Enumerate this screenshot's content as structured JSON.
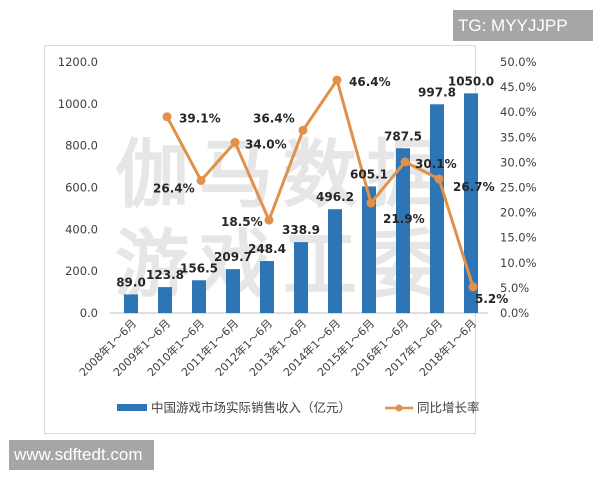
{
  "badges": {
    "top_right": "TG: MYYJJPP",
    "bottom_left": "www.sdftedt.com"
  },
  "watermark": {
    "line1": "伽马数据",
    "line2": "游戏工委"
  },
  "colors": {
    "bar": "#2e75b6",
    "line": "#e0914a",
    "axis_text": "#404040",
    "label_text": "#262626",
    "badge_bg": "#a6a6a6",
    "watermark": "#e6e6e6"
  },
  "chart_data": {
    "type": "bar+line",
    "title": "",
    "categories": [
      "2008年1～6月",
      "2009年1～6月",
      "2010年1～6月",
      "2011年1～6月",
      "2012年1～6月",
      "2013年1～6月",
      "2014年1～6月",
      "2015年1～6月",
      "2016年1～6月",
      "2017年1～6月",
      "2018年1～6月"
    ],
    "series": [
      {
        "name": "中国游戏市场实际销售收入（亿元）",
        "type": "bar",
        "axis": "left",
        "values": [
          89.0,
          123.8,
          156.5,
          209.7,
          248.4,
          338.9,
          496.2,
          605.1,
          787.5,
          997.8,
          1050.0
        ],
        "labels": [
          "89.0",
          "123.8",
          "156.5",
          "209.7",
          "248.4",
          "338.9",
          "496.2",
          "605.1",
          "787.5",
          "997.8",
          "1050.0"
        ]
      },
      {
        "name": "同比增长率",
        "type": "line",
        "axis": "right",
        "values": [
          null,
          39.1,
          26.4,
          34.0,
          18.5,
          36.4,
          46.4,
          21.9,
          30.1,
          26.7,
          5.2
        ],
        "labels": [
          "",
          "39.1%",
          "26.4%",
          "34.0%",
          "18.5%",
          "36.4%",
          "46.4%",
          "21.9%",
          "30.1%",
          "26.7%",
          "5.2%"
        ]
      }
    ],
    "left_axis": {
      "ylim": [
        0,
        1200
      ],
      "ticks": [
        "0.0",
        "200.0",
        "400.0",
        "600.0",
        "800.0",
        "1000.0",
        "1200.0"
      ]
    },
    "right_axis": {
      "ylim": [
        0,
        50
      ],
      "ticks": [
        "0.0%",
        "5.0%",
        "10.0%",
        "15.0%",
        "20.0%",
        "25.0%",
        "30.0%",
        "35.0%",
        "40.0%",
        "45.0%",
        "50.0%"
      ]
    },
    "xlabel": "",
    "ylabel": "",
    "grid": false,
    "legend": {
      "position": "bottom",
      "items": [
        "中国游戏市场实际销售收入（亿元）",
        "同比增长率"
      ]
    }
  }
}
